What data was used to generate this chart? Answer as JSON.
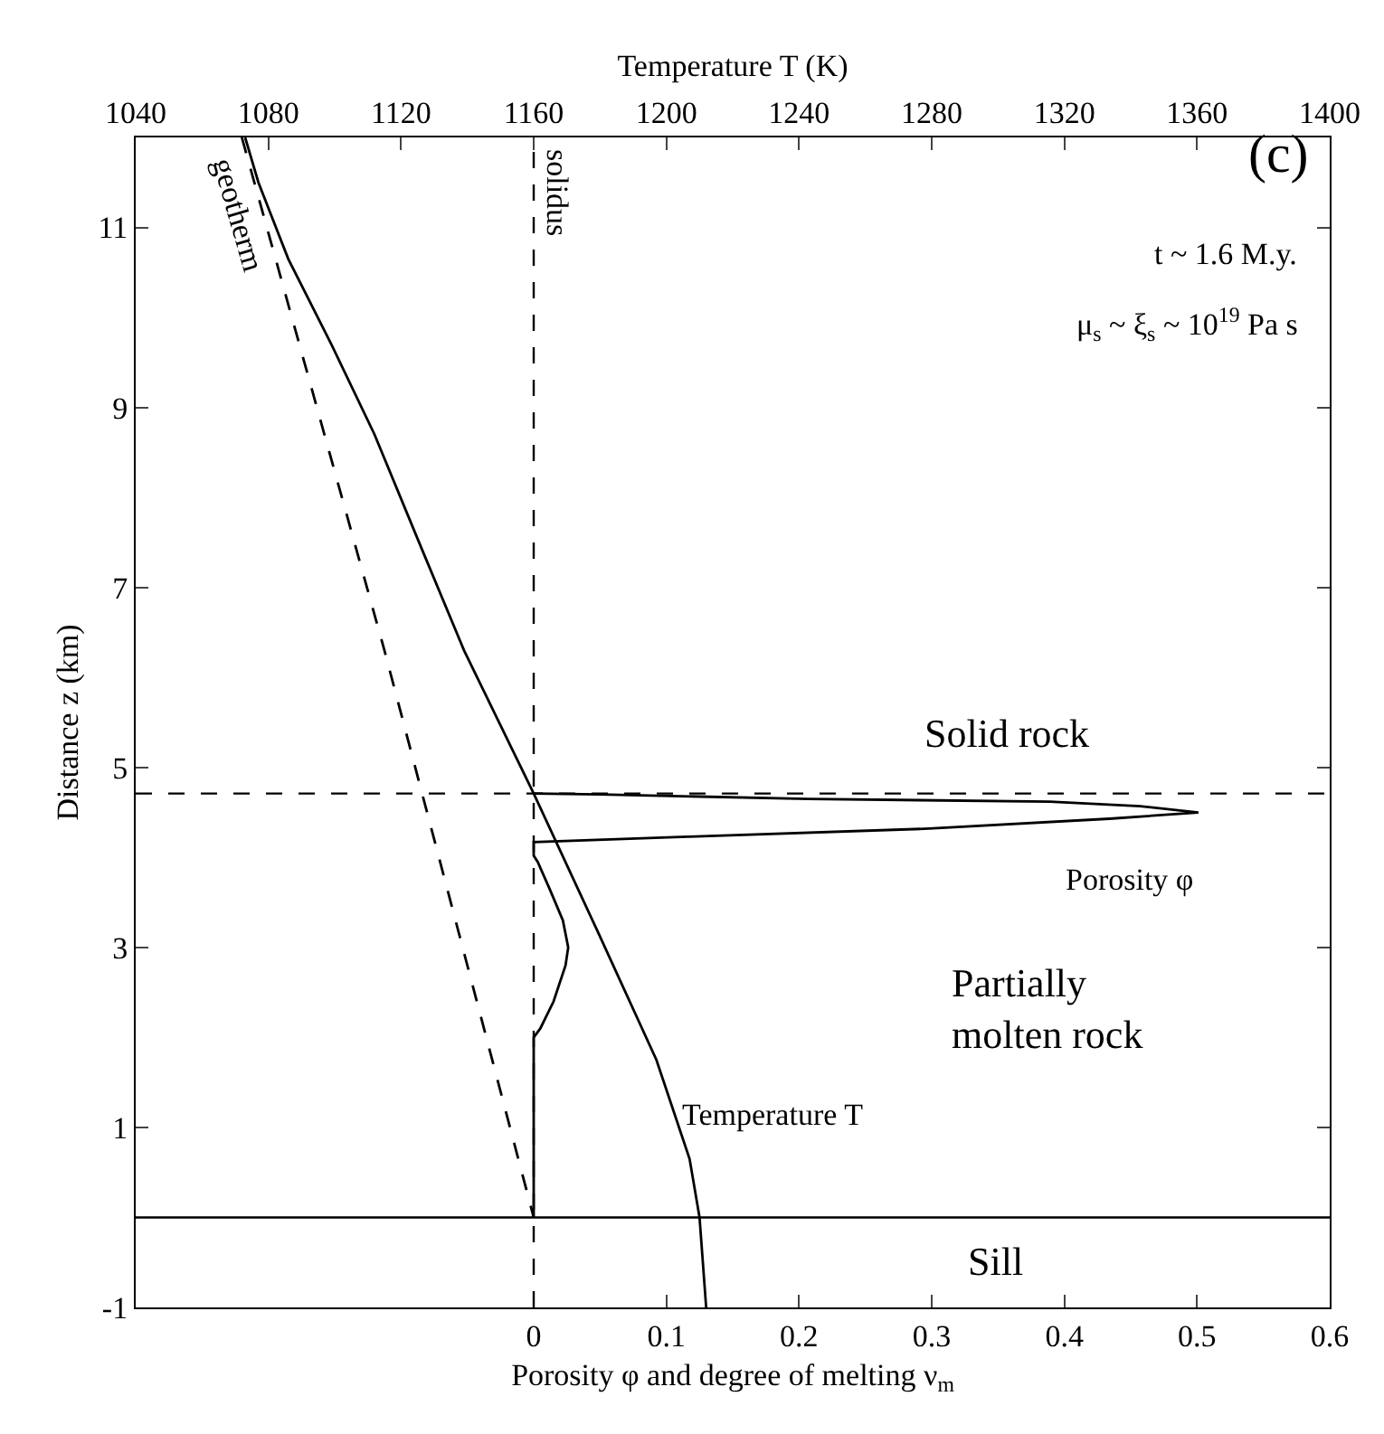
{
  "chart_data": {
    "type": "line",
    "xlabel": "Porosity φ and degree of melting ν$_{m}$",
    "x2label": "Temperature T (K)",
    "ylabel": "Distance z (km)",
    "xlim": [
      -0.3,
      0.6
    ],
    "xticks": [
      0,
      0.1,
      0.2,
      0.3,
      0.4,
      0.5,
      0.6
    ],
    "x2lim": [
      1040,
      1400
    ],
    "x2ticks": [
      1040,
      1080,
      1120,
      1160,
      1200,
      1240,
      1280,
      1320,
      1360,
      1400
    ],
    "ylim": [
      -1,
      12
    ],
    "yticks": [
      -1,
      1,
      3,
      5,
      7,
      9,
      11
    ],
    "legend": false,
    "series": [
      {
        "name": "Temperature T",
        "color": "#000000",
        "axis": "x2",
        "line_style": "solid",
        "x": [
          1073,
          1077,
          1086,
          1099,
          1112,
          1126,
          1139,
          1160,
          1179,
          1197,
          1207,
          1210,
          1212
        ],
        "values": [
          12,
          11.5,
          10.65,
          9.7,
          8.7,
          7.45,
          6.3,
          4.71,
          3.2,
          1.75,
          0.65,
          0,
          -1
        ]
      },
      {
        "name": "Porosity φ",
        "color": "#000000",
        "line_style": "solid",
        "x": [
          0,
          0,
          0.005,
          0.015,
          0.024,
          0.026,
          0.022,
          0.012,
          0.003,
          0,
          0,
          0.116,
          0.298,
          0.434,
          0.501,
          0.457,
          0.389,
          0.207,
          0.05,
          0
        ],
        "values": [
          0,
          2.0,
          2.1,
          2.4,
          2.8,
          3.0,
          3.3,
          3.65,
          3.95,
          4.02,
          4.17,
          4.23,
          4.32,
          4.43,
          4.5,
          4.57,
          4.62,
          4.65,
          4.7,
          4.71
        ]
      },
      {
        "name": "geotherm",
        "color": "#000000",
        "axis": "x2",
        "line_style": "dashed",
        "x": [
          1072,
          1115,
          1160
        ],
        "values": [
          12,
          6.3,
          0
        ]
      }
    ],
    "ref_lines": [
      {
        "axis": "x2",
        "value": 1160,
        "label": "solidus",
        "line_style": "dashed",
        "color": "#000000"
      },
      {
        "axis": "y",
        "value": 4.71,
        "line_style": "dashed",
        "color": "#000000"
      },
      {
        "axis": "y",
        "value": 0,
        "line_style": "solid",
        "color": "#000000"
      }
    ],
    "annotations": [
      "(c)",
      "t ~ 1.6 M.y.",
      "μ$_{s}$ ~ ξ$_{s}$ ~ 10$^{19}$ Pa s",
      "Solid rock",
      "Partially molten rock",
      "Sill"
    ]
  }
}
